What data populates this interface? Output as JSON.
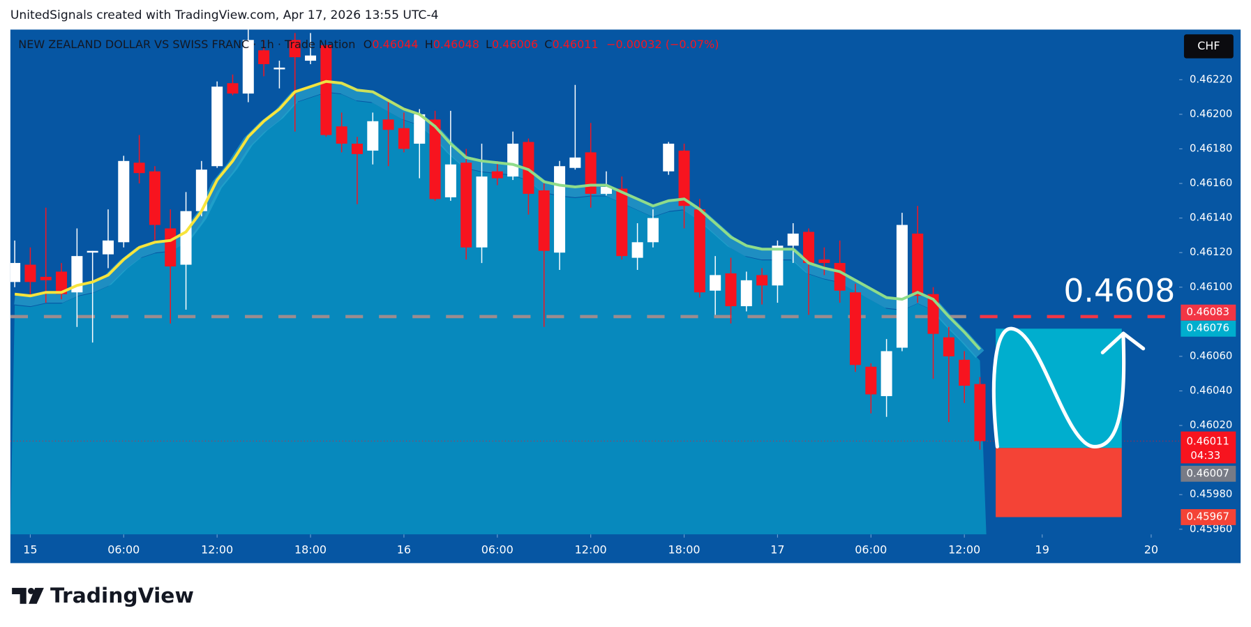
{
  "chart_data": {
    "type": "candlestick",
    "header": "UnitedSignals created with TradingView.com, Apr 17, 2026 13:55 UTC-4",
    "title": "NEW ZEALAND DOLLAR VS SWISS FRANC · 1h · Trade Nation",
    "legend_keys": [
      "O",
      "H",
      "L",
      "C"
    ],
    "change": "−0.00032 (−0.07%)",
    "currency": "CHF",
    "up_color": "#ffffff",
    "down_color": "#f7141f",
    "x": [
      -1,
      0,
      1,
      2,
      3,
      4,
      5,
      6,
      7,
      8,
      9,
      10,
      11,
      12,
      13,
      14,
      15,
      16,
      17,
      18,
      19,
      20,
      21,
      22,
      23,
      24,
      25,
      26,
      27,
      28,
      29,
      30,
      31,
      32,
      33,
      34,
      35,
      36,
      37,
      38,
      39,
      40,
      41,
      42,
      43,
      44,
      45,
      46,
      47,
      48,
      49,
      50,
      51,
      52,
      53,
      54,
      55,
      56,
      57,
      58,
      59,
      60,
      61
    ],
    "open": [
      0.46103,
      0.46113,
      0.46106,
      0.46109,
      0.46097,
      0.4612,
      0.46119,
      0.46126,
      0.46172,
      0.46167,
      0.46134,
      0.46113,
      0.46144,
      0.4617,
      0.46218,
      0.46212,
      0.46237,
      0.46226,
      0.46243,
      0.46231,
      0.4624,
      0.46193,
      0.46183,
      0.46179,
      0.46197,
      0.46192,
      0.46183,
      0.46197,
      0.46152,
      0.46172,
      0.46123,
      0.46167,
      0.46164,
      0.46184,
      0.46156,
      0.4612,
      0.46169,
      0.46178,
      0.46154,
      0.46157,
      0.46117,
      0.46126,
      0.46167,
      0.46179,
      0.46145,
      0.46098,
      0.46108,
      0.46089,
      0.46107,
      0.46101,
      0.46124,
      0.46132,
      0.46116,
      0.46114,
      0.46097,
      0.46054,
      0.46037,
      0.46065,
      0.46131,
      0.46096,
      0.46071,
      0.46058,
      0.46044
    ],
    "high": [
      0.46127,
      0.46123,
      0.46146,
      0.46114,
      0.46134,
      0.46121,
      0.46145,
      0.46176,
      0.46188,
      0.4617,
      0.46145,
      0.46155,
      0.46173,
      0.46219,
      0.46223,
      0.46249,
      0.46243,
      0.46231,
      0.46247,
      0.46247,
      0.4624,
      0.46201,
      0.46187,
      0.46201,
      0.46208,
      0.46201,
      0.46203,
      0.46202,
      0.46202,
      0.4618,
      0.46183,
      0.46173,
      0.4619,
      0.46186,
      0.4616,
      0.46173,
      0.46217,
      0.46195,
      0.46167,
      0.46164,
      0.46137,
      0.46145,
      0.46184,
      0.46183,
      0.46151,
      0.46118,
      0.46117,
      0.46109,
      0.46111,
      0.46127,
      0.46137,
      0.46134,
      0.46123,
      0.46127,
      0.46102,
      0.46056,
      0.4607,
      0.46143,
      0.46147,
      0.461,
      0.46077,
      0.46063,
      0.46048
    ],
    "low": [
      0.461,
      0.46095,
      0.46091,
      0.46093,
      0.46077,
      0.46068,
      0.46111,
      0.46123,
      0.4616,
      0.46127,
      0.46079,
      0.46087,
      0.46141,
      0.46169,
      0.46211,
      0.46207,
      0.46222,
      0.46215,
      0.4619,
      0.46229,
      0.46187,
      0.46178,
      0.46148,
      0.46171,
      0.4617,
      0.46178,
      0.46163,
      0.4615,
      0.4615,
      0.46116,
      0.46114,
      0.46159,
      0.46162,
      0.46142,
      0.46077,
      0.4611,
      0.46168,
      0.46146,
      0.46153,
      0.46116,
      0.4611,
      0.46123,
      0.46165,
      0.46134,
      0.46094,
      0.46084,
      0.46079,
      0.46086,
      0.4609,
      0.46091,
      0.46114,
      0.46084,
      0.46107,
      0.46091,
      0.46051,
      0.46027,
      0.46025,
      0.46063,
      0.46091,
      0.46047,
      0.46022,
      0.46033,
      0.46006
    ],
    "close": [
      0.46114,
      0.46103,
      0.46104,
      0.46096,
      0.46118,
      0.46121,
      0.46127,
      0.46173,
      0.46166,
      0.46136,
      0.46112,
      0.46144,
      0.46168,
      0.46216,
      0.46212,
      0.46243,
      0.46229,
      0.46227,
      0.46233,
      0.46234,
      0.46188,
      0.46183,
      0.46177,
      0.46196,
      0.46191,
      0.4618,
      0.462,
      0.46151,
      0.46171,
      0.46123,
      0.46164,
      0.46163,
      0.46183,
      0.46154,
      0.46121,
      0.4617,
      0.46175,
      0.46154,
      0.46158,
      0.46118,
      0.46126,
      0.4614,
      0.46183,
      0.46147,
      0.46097,
      0.46107,
      0.46089,
      0.46104,
      0.46101,
      0.46124,
      0.46131,
      0.46114,
      0.46114,
      0.46098,
      0.46055,
      0.46038,
      0.46063,
      0.46136,
      0.46095,
      0.46073,
      0.4606,
      0.46043,
      0.46011
    ],
    "ema": {
      "color": "#f7e43c",
      "color_end": "#8fdc8a",
      "values": [
        0.46096,
        0.46095,
        0.46097,
        0.46097,
        0.46101,
        0.46103,
        0.46107,
        0.46116,
        0.46123,
        0.46126,
        0.46127,
        0.46132,
        0.46144,
        0.46162,
        0.46173,
        0.46187,
        0.46196,
        0.46203,
        0.46213,
        0.46216,
        0.46219,
        0.46218,
        0.46214,
        0.46213,
        0.46208,
        0.46203,
        0.462,
        0.46193,
        0.46183,
        0.46175,
        0.46173,
        0.46172,
        0.46171,
        0.46168,
        0.46161,
        0.46159,
        0.46158,
        0.46159,
        0.46159,
        0.46155,
        0.46151,
        0.46147,
        0.4615,
        0.46151,
        0.46145,
        0.46137,
        0.46129,
        0.46124,
        0.46122,
        0.46122,
        0.46122,
        0.46114,
        0.46111,
        0.46109,
        0.46104,
        0.46099,
        0.46094,
        0.46093,
        0.46097,
        0.46093,
        0.46083,
        0.46074,
        0.46064
      ]
    },
    "xlim": [
      -1.28,
      73.8
    ],
    "ylim": [
      0.45957,
      0.46249
    ],
    "xticks": [
      {
        "value": 0,
        "label": "15"
      },
      {
        "value": 6,
        "label": "06:00"
      },
      {
        "value": 12,
        "label": "12:00"
      },
      {
        "value": 18,
        "label": "18:00"
      },
      {
        "value": 24,
        "label": "16"
      },
      {
        "value": 30,
        "label": "06:00"
      },
      {
        "value": 36,
        "label": "12:00"
      },
      {
        "value": 42,
        "label": "18:00"
      },
      {
        "value": 48,
        "label": "17"
      },
      {
        "value": 54,
        "label": "06:00"
      },
      {
        "value": 60,
        "label": "12:00"
      },
      {
        "value": 65,
        "label": "19"
      },
      {
        "value": 72,
        "label": "20"
      }
    ],
    "yticks": [
      {
        "value": 0.4622,
        "label": "0.46220"
      },
      {
        "value": 0.462,
        "label": "0.46200"
      },
      {
        "value": 0.4618,
        "label": "0.46180"
      },
      {
        "value": 0.4616,
        "label": "0.46160"
      },
      {
        "value": 0.4614,
        "label": "0.46140"
      },
      {
        "value": 0.4612,
        "label": "0.46120"
      },
      {
        "value": 0.461,
        "label": "0.46100"
      },
      {
        "value": 0.4606,
        "label": "0.46060"
      },
      {
        "value": 0.4604,
        "label": "0.46040"
      },
      {
        "value": 0.4602,
        "label": "0.46020"
      },
      {
        "value": 0.4598,
        "label": "0.45980"
      },
      {
        "value": 0.4596,
        "label": "0.45960"
      }
    ],
    "level": {
      "value": 0.46083,
      "color": "#f23645",
      "color_before": "#9b8c8f"
    },
    "annotation": "0.4608",
    "position": {
      "target": 0.46076,
      "entry": 0.46007,
      "stop": 0.45967,
      "target_color": "#00aece",
      "stop_color": "#f44336",
      "entry_color": "#787b86"
    },
    "countdown": "04:33",
    "footer": "TradingView"
  }
}
